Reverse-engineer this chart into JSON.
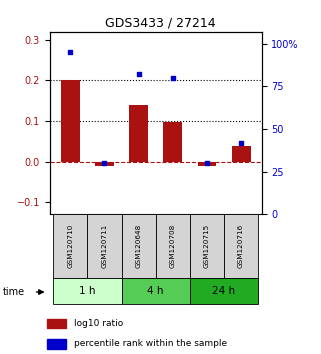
{
  "title": "GDS3433 / 27214",
  "categories": [
    "GSM120710",
    "GSM120711",
    "GSM120648",
    "GSM120708",
    "GSM120715",
    "GSM120716"
  ],
  "log10_ratio": [
    0.2,
    -0.012,
    0.14,
    0.097,
    -0.012,
    0.038
  ],
  "percentile_rank": [
    95,
    30,
    82,
    80,
    30,
    42
  ],
  "bar_color": "#aa1111",
  "dot_color": "#0000cc",
  "ylim_left": [
    -0.13,
    0.32
  ],
  "ylim_right": [
    0,
    107
  ],
  "yticks_left": [
    -0.1,
    0.0,
    0.1,
    0.2,
    0.3
  ],
  "yticks_right": [
    0,
    25,
    50,
    75,
    100
  ],
  "hline_y": [
    0.1,
    0.2
  ],
  "groups": [
    {
      "label": "1 h",
      "indices": [
        0,
        1
      ],
      "color": "#ccffcc"
    },
    {
      "label": "4 h",
      "indices": [
        2,
        3
      ],
      "color": "#55cc55"
    },
    {
      "label": "24 h",
      "indices": [
        4,
        5
      ],
      "color": "#22aa22"
    }
  ],
  "time_label": "time",
  "legend_bar_label": "log10 ratio",
  "legend_dot_label": "percentile rank within the sample",
  "background_color": "#ffffff"
}
